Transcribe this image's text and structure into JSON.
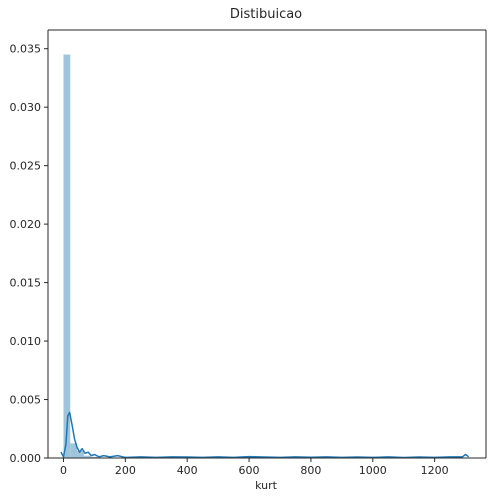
{
  "chart_data": {
    "type": "bar",
    "subtype": "histogram-with-kde",
    "title": "Distibuicao",
    "xlabel": "kurt",
    "ylabel": "",
    "xlim": [
      -50,
      1366
    ],
    "ylim": [
      0,
      0.0366
    ],
    "x_ticks": [
      0,
      200,
      400,
      600,
      800,
      1000,
      1200
    ],
    "x_tick_labels": [
      "0",
      "200",
      "400",
      "600",
      "800",
      "1000",
      "1200"
    ],
    "y_ticks": [
      0,
      0.005,
      0.01,
      0.015,
      0.02,
      0.025,
      0.03,
      0.035
    ],
    "y_tick_labels": [
      "0.000",
      "0.005",
      "0.010",
      "0.015",
      "0.020",
      "0.025",
      "0.030",
      "0.035"
    ],
    "grid": false,
    "colors": {
      "bar": "#9fc5dd",
      "kde": "#1f77b4",
      "axis": "#262626"
    },
    "bins": [
      {
        "x0": 0,
        "x1": 22,
        "density": 0.0345
      },
      {
        "x0": 22,
        "x1": 44,
        "density": 0.00125
      },
      {
        "x0": 44,
        "x1": 66,
        "density": 0.0006
      },
      {
        "x0": 66,
        "x1": 88,
        "density": 0.0002
      },
      {
        "x0": 88,
        "x1": 110,
        "density": 0.0001
      },
      {
        "x0": 110,
        "x1": 132,
        "density": 5e-05
      }
    ],
    "kde": {
      "x": [
        -8,
        0,
        8,
        14,
        20,
        28,
        36,
        44,
        52,
        60,
        70,
        80,
        90,
        100,
        115,
        130,
        150,
        175,
        200,
        250,
        300,
        350,
        400,
        450,
        500,
        550,
        600,
        650,
        700,
        750,
        800,
        850,
        900,
        950,
        1000,
        1050,
        1100,
        1150,
        1200,
        1250,
        1290,
        1300,
        1310
      ],
      "y": [
        0.0005,
        0.0001,
        0.0012,
        0.0036,
        0.0039,
        0.0028,
        0.0016,
        0.0009,
        0.0005,
        0.0008,
        0.0004,
        0.0005,
        0.0002,
        0.0003,
        0.0001,
        0.0002,
        0.0001,
        0.0002,
        5e-05,
        0.0001,
        5e-05,
        0.0001,
        8e-05,
        5e-05,
        0.0001,
        5e-05,
        0.00012,
        8e-05,
        5e-05,
        0.0001,
        6e-05,
        0.0001,
        5e-05,
        8e-05,
        5e-05,
        0.0001,
        4e-05,
        8e-05,
        5e-05,
        0.0001,
        0.0001,
        0.0003,
        0.0001
      ]
    }
  }
}
